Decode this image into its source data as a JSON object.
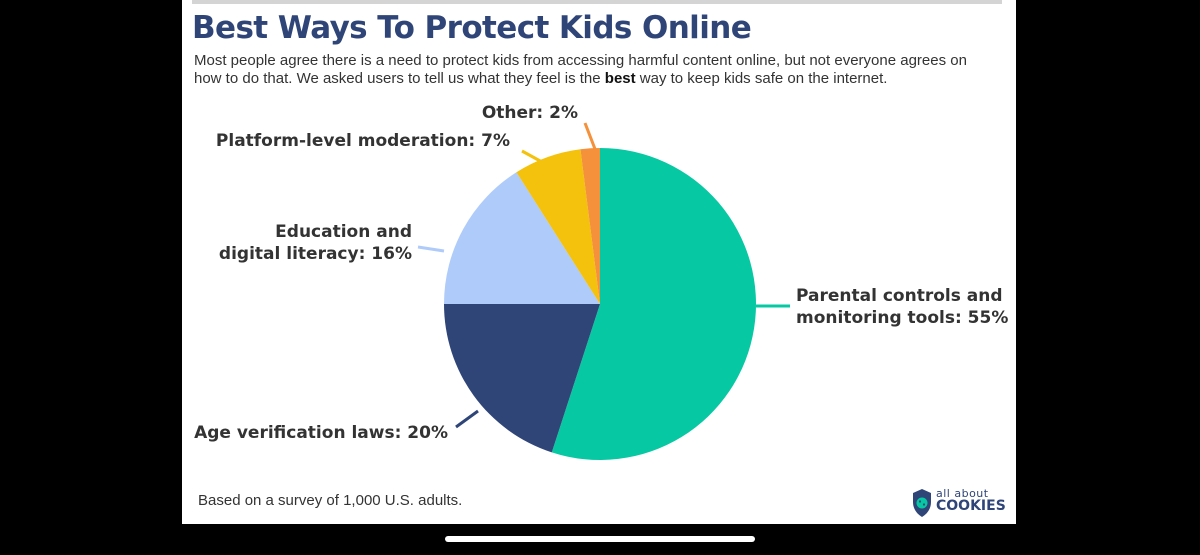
{
  "header": {
    "title": "Best Ways To Protect Kids Online",
    "subtitle_before": "Most people agree there is a need to protect kids from accessing harmful content online, but not everyone agrees on how to do that. We asked users to tell us what they feel is the ",
    "subtitle_bold": "best",
    "subtitle_after": " way to keep kids safe on the internet."
  },
  "footnote": "Based on a survey of 1,000 U.S. adults.",
  "logo": {
    "line1": "all about",
    "line2": "COOKIES",
    "icon": "shield-cookie-icon"
  },
  "chart_data": {
    "type": "pie",
    "slices": [
      {
        "label_lines": [
          "Parental controls and",
          "monitoring tools: 55%"
        ],
        "name": "Parental controls and monitoring tools",
        "value": 55,
        "color": "#06c9a4"
      },
      {
        "label_lines": [
          "Age verification laws: 20%"
        ],
        "name": "Age verification laws",
        "value": 20,
        "color": "#2f4578"
      },
      {
        "label_lines": [
          "Education and",
          "digital literacy: 16%"
        ],
        "name": "Education and digital literacy",
        "value": 16,
        "color": "#aecbfa"
      },
      {
        "label_lines": [
          "Platform-level moderation: 7%"
        ],
        "name": "Platform-level moderation",
        "value": 7,
        "color": "#f4c20d"
      },
      {
        "label_lines": [
          "Other: 2%"
        ],
        "name": "Other",
        "value": 2,
        "color": "#f4913a"
      }
    ]
  }
}
